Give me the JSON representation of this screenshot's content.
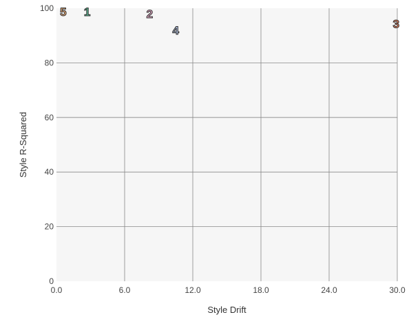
{
  "chart_data": {
    "type": "scatter",
    "title": "",
    "xlabel": "Style Drift",
    "ylabel": "Style R-Squared",
    "xlim": [
      0,
      30
    ],
    "ylim": [
      0,
      100
    ],
    "x_ticks": [
      "0.0",
      "6.0",
      "12.0",
      "18.0",
      "24.0",
      "30.0"
    ],
    "x_tick_values": [
      0,
      6,
      12,
      18,
      24,
      30
    ],
    "y_ticks": [
      "0",
      "20",
      "40",
      "60",
      "80",
      "100"
    ],
    "y_tick_values": [
      0,
      20,
      40,
      60,
      80,
      100
    ],
    "grid": true,
    "background": "#f6f6f6",
    "grid_color": "#888888",
    "points": [
      {
        "label": "5",
        "x": 0.6,
        "y": 98.8,
        "color": "#f6b37a"
      },
      {
        "label": "1",
        "x": 2.7,
        "y": 98.8,
        "color": "#5ec49a"
      },
      {
        "label": "2",
        "x": 8.2,
        "y": 98.0,
        "color": "#f0b0d0"
      },
      {
        "label": "4",
        "x": 10.5,
        "y": 92.0,
        "color": "#b8c8ea"
      },
      {
        "label": "3",
        "x": 29.9,
        "y": 94.3,
        "color": "#f2835f"
      }
    ]
  }
}
